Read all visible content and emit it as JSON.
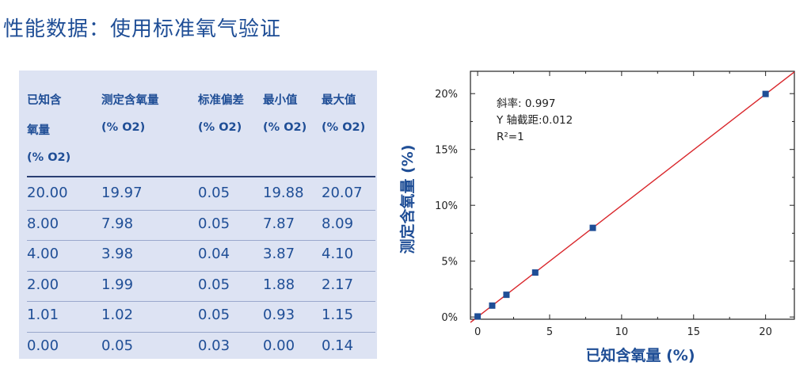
{
  "title": "性能数据：使用标准氧气验证",
  "table": {
    "columns": [
      [
        "已知含",
        "氧量",
        "(% O2)"
      ],
      [
        "测定含氧量",
        "(% O2)"
      ],
      [
        "标准偏差",
        "(% O2)"
      ],
      [
        "最小值",
        "(% O2)"
      ],
      [
        "最大值",
        "(% O2)"
      ]
    ],
    "rows": [
      [
        "20.00",
        "19.97",
        "0.05",
        "19.88",
        "20.07"
      ],
      [
        "8.00",
        "7.98",
        "0.05",
        "7.87",
        "8.09"
      ],
      [
        "4.00",
        "3.98",
        "0.04",
        "3.87",
        "4.10"
      ],
      [
        "2.00",
        "1.99",
        "0.05",
        "1.88",
        "2.17"
      ],
      [
        "1.01",
        "1.02",
        "0.05",
        "0.93",
        "1.15"
      ],
      [
        "0.00",
        "0.05",
        "0.03",
        "0.00",
        "0.14"
      ]
    ]
  },
  "chart_data": {
    "type": "scatter",
    "xlabel": "已知含氧量 (%)",
    "ylabel": "测定含氧量 (%)",
    "xlim": [
      -0.5,
      22
    ],
    "ylim": [
      -0.2,
      22
    ],
    "xticks": [
      0,
      5,
      10,
      15,
      20
    ],
    "xtick_labels": [
      "0",
      "5",
      "10",
      "15",
      "20"
    ],
    "yticks": [
      0,
      5,
      10,
      15,
      20
    ],
    "ytick_labels": [
      "0%",
      "5%",
      "10%",
      "15%",
      "20%"
    ],
    "points": [
      {
        "x": 0.0,
        "y": 0.05
      },
      {
        "x": 1.01,
        "y": 1.02
      },
      {
        "x": 2.0,
        "y": 1.99
      },
      {
        "x": 4.0,
        "y": 3.98
      },
      {
        "x": 8.0,
        "y": 7.98
      },
      {
        "x": 20.0,
        "y": 19.97
      }
    ],
    "fit": {
      "slope": 0.997,
      "intercept": 0.012
    },
    "annotations": [
      "斜率: 0.997",
      "Y 轴截距:0.012",
      "R²=1"
    ],
    "colors": {
      "points": "#1f4e96",
      "fit_line": "#d9262b",
      "axis": "#222222",
      "label": "#1f4e96"
    }
  }
}
